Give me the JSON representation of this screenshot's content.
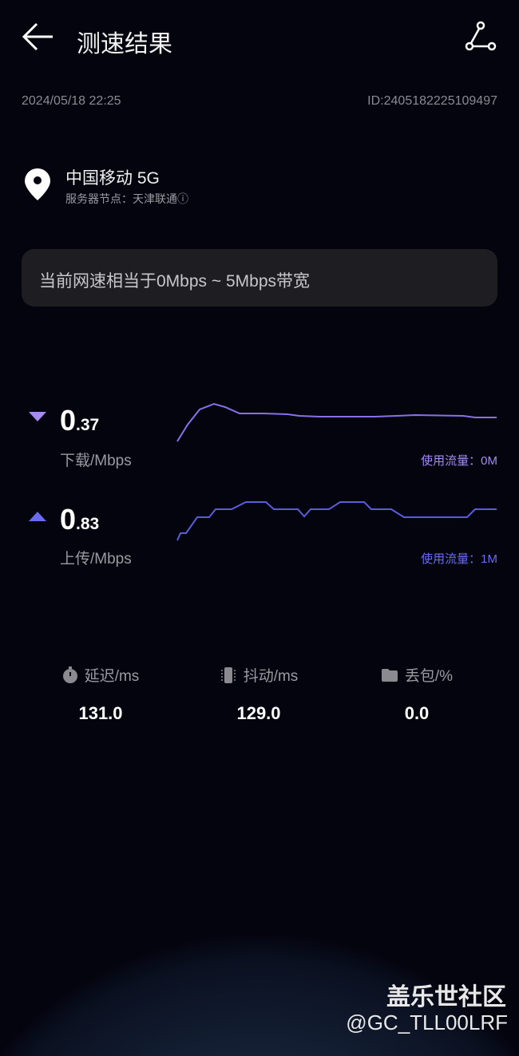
{
  "header": {
    "title": "测速结果",
    "back_icon": "arrow-left-icon",
    "share_icon": "share-icon"
  },
  "meta": {
    "datetime": "2024/05/18 22:25",
    "id": "ID:2405182225109497"
  },
  "location": {
    "carrier": "中国移动 5G",
    "server": "服务器节点：天津联通ⓘ"
  },
  "banner": "当前网速相当于0Mbps ~ 5Mbps带宽",
  "download": {
    "int": "0",
    "dec": ".37",
    "unit": "下载/Mbps",
    "usage": "使用流量：0M",
    "color": "#a58bf0"
  },
  "upload": {
    "int": "0",
    "dec": ".83",
    "unit": "上传/Mbps",
    "usage": "使用流量：1M",
    "color": "#6a6cf0"
  },
  "stats": [
    {
      "label": "延迟/ms",
      "value": "131.0",
      "icon": "stopwatch-icon"
    },
    {
      "label": "抖动/ms",
      "value": "129.0",
      "icon": "vibrate-icon"
    },
    {
      "label": "丢包/%",
      "value": "0.0",
      "icon": "folder-icon"
    }
  ],
  "watermark": {
    "brand": "盖乐世社区",
    "user": "@GC_TLL00LRF"
  }
}
